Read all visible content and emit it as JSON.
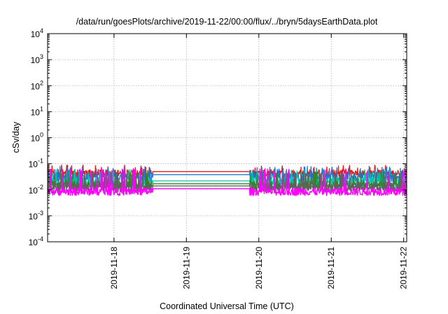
{
  "chart_data": {
    "type": "line",
    "title": "/data/run/goesPlots/archive/2019-11-22/00:00/flux/../bryn/5daysEarthData.plot",
    "xlabel": "Coordinated Universal Time (UTC)",
    "ylabel": "cSv/day",
    "yscale": "log",
    "ylim": [
      0.0001,
      10000
    ],
    "y_ticks": [
      {
        "base": "10",
        "exp": "-4"
      },
      {
        "base": "10",
        "exp": "-3"
      },
      {
        "base": "10",
        "exp": "-2"
      },
      {
        "base": "10",
        "exp": "-1"
      },
      {
        "base": "10",
        "exp": "0"
      },
      {
        "base": "10",
        "exp": "1"
      },
      {
        "base": "10",
        "exp": "2"
      },
      {
        "base": "10",
        "exp": "3"
      },
      {
        "base": "10",
        "exp": "4"
      }
    ],
    "xlim": [
      "2019-11-17T02:00",
      "2019-11-22T01:00"
    ],
    "x_ticks": [
      "2019-11-18",
      "2019-11-19",
      "2019-11-20",
      "2019-11-21",
      "2019-11-22"
    ],
    "grid": true,
    "data_gap": [
      "2019-11-18T12:40",
      "2019-11-19T21:00"
    ],
    "series": [
      {
        "color": "#e41a1c",
        "upper_level": 0.06,
        "lower_level": 0.03,
        "spikes_to": 0.09,
        "gap_level": 0.05,
        "segment_end_level": 0.04
      },
      {
        "color": "#1f78d1",
        "upper_level": 0.045,
        "lower_level": 0.02,
        "spikes_to": 0.08,
        "gap_level": 0.038,
        "segment_end_level": 0.03
      },
      {
        "color": "#00c8a0",
        "upper_level": 0.03,
        "lower_level": 0.012,
        "spikes_to": 0.06,
        "gap_level": 0.022,
        "segment_end_level": 0.018
      },
      {
        "color": "#3c7d2a",
        "upper_level": 0.022,
        "lower_level": 0.01,
        "spikes_to": 0.05,
        "gap_level": 0.017,
        "segment_end_level": 0.014
      },
      {
        "color": "#606060",
        "upper_level": 0.018,
        "lower_level": 0.0085,
        "spikes_to": 0.045,
        "gap_level": 0.014,
        "segment_end_level": 0.011
      },
      {
        "color": "#ff00ff",
        "upper_level": 0.012,
        "lower_level": 0.006,
        "spikes_to": 0.065,
        "gap_level": 0.011,
        "segment_end_level": 0.008
      }
    ]
  }
}
